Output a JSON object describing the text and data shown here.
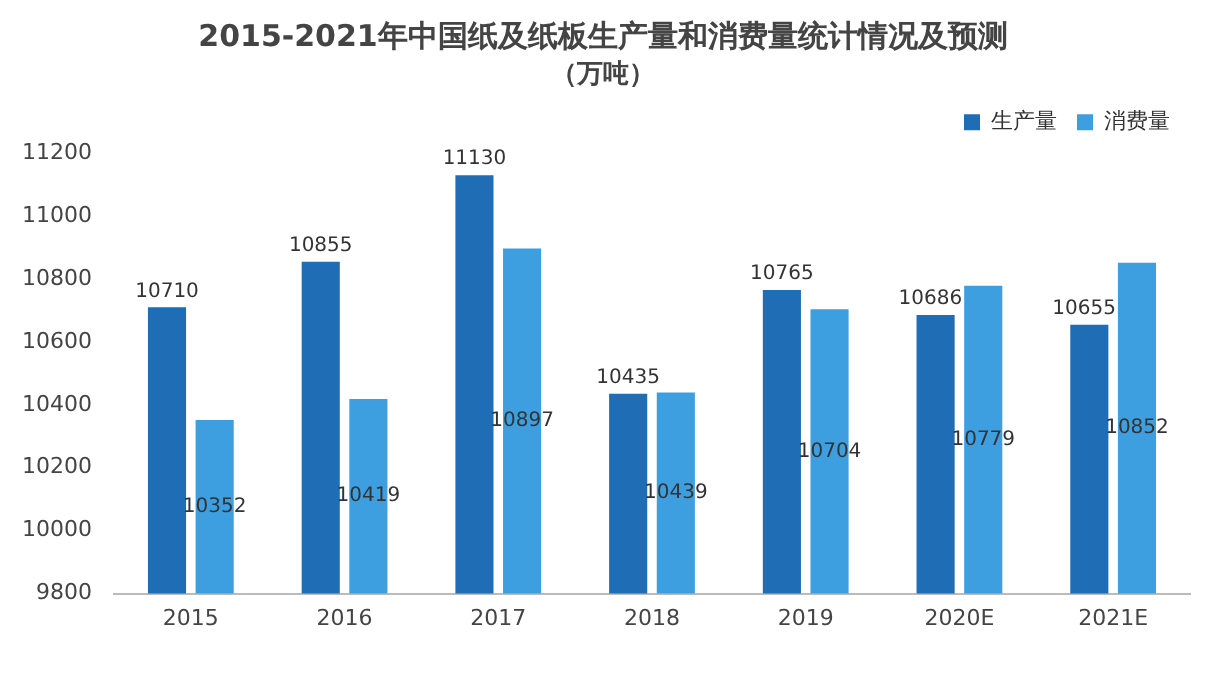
{
  "chart_data": {
    "type": "bar",
    "title": "2015-2021年中国纸及纸板生产量和消费量统计情况及预测",
    "subtitle": "（万吨）",
    "categories": [
      "2015",
      "2016",
      "2017",
      "2018",
      "2019",
      "2020E",
      "2021E"
    ],
    "series": [
      {
        "name": "生产量",
        "color": "#1f6db5",
        "values": [
          10710,
          10855,
          11130,
          10435,
          10765,
          10686,
          10655
        ]
      },
      {
        "name": "消费量",
        "color": "#3d9fe0",
        "values": [
          10352,
          10419,
          10897,
          10439,
          10704,
          10779,
          10852
        ]
      }
    ],
    "ylim": [
      9800,
      11200
    ],
    "yticks": [
      9800,
      10000,
      10200,
      10400,
      10600,
      10800,
      11000,
      11200
    ],
    "grid": false,
    "legend": "top right",
    "data_labels": true
  }
}
